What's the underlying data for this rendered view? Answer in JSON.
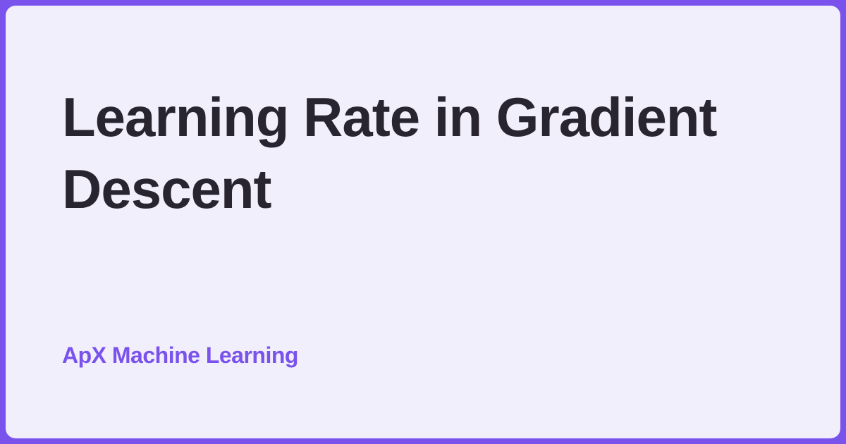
{
  "card": {
    "title": "Learning Rate in Gradient Descent",
    "title_lines": [
      "Learning Rate in Gradient",
      "Descent"
    ],
    "brand": "ApX Machine Learning"
  },
  "colors": {
    "accent_purple": "#7A52EC",
    "card_background": "#F1EFFB",
    "title_text": "#282531"
  }
}
